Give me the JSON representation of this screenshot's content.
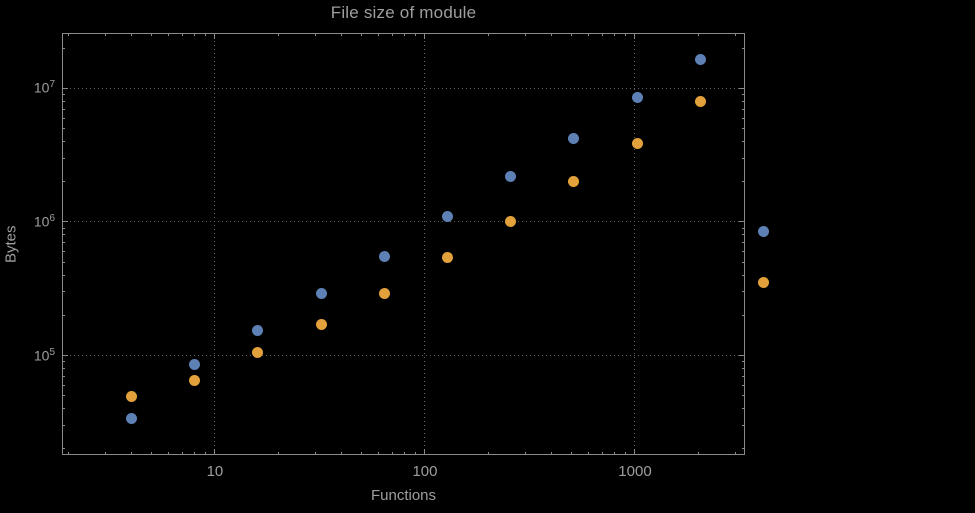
{
  "chart_data": {
    "type": "scatter",
    "title": "File size of module",
    "xlabel": "Functions",
    "ylabel": "Bytes",
    "x_scale": "log",
    "y_scale": "log",
    "xlim": [
      1.87,
      3340
    ],
    "ylim": [
      18000,
      26000000
    ],
    "grid": "dotted-at-major-ticks",
    "legend": "none",
    "x_major_ticks": [
      10,
      100,
      1000
    ],
    "x_tick_labels": [
      "10",
      "100",
      "1000"
    ],
    "y_major_ticks": [
      100000,
      1000000,
      10000000
    ],
    "y_tick_exponents": [
      5,
      6,
      7
    ],
    "x": [
      4,
      8,
      16,
      32,
      64,
      128,
      256,
      512,
      1024,
      2048,
      4096
    ],
    "series": [
      {
        "name": "blue",
        "color": "#5e81b5",
        "values": [
          34000,
          85000,
          155000,
          290000,
          550000,
          1100000,
          2200000,
          4200000,
          8500000,
          16500000,
          850000
        ]
      },
      {
        "name": "orange",
        "color": "#e2a13b",
        "values": [
          49000,
          65000,
          105000,
          170000,
          290000,
          540000,
          1000000,
          2000000,
          3900000,
          8000000,
          350000
        ]
      }
    ]
  },
  "styles": {
    "background": "#000000",
    "text_color": "#9e9e9e",
    "frame_color": "#8a8a8a",
    "tick_color": "#8a8a8a",
    "grid_color": "#5f5f5f"
  }
}
